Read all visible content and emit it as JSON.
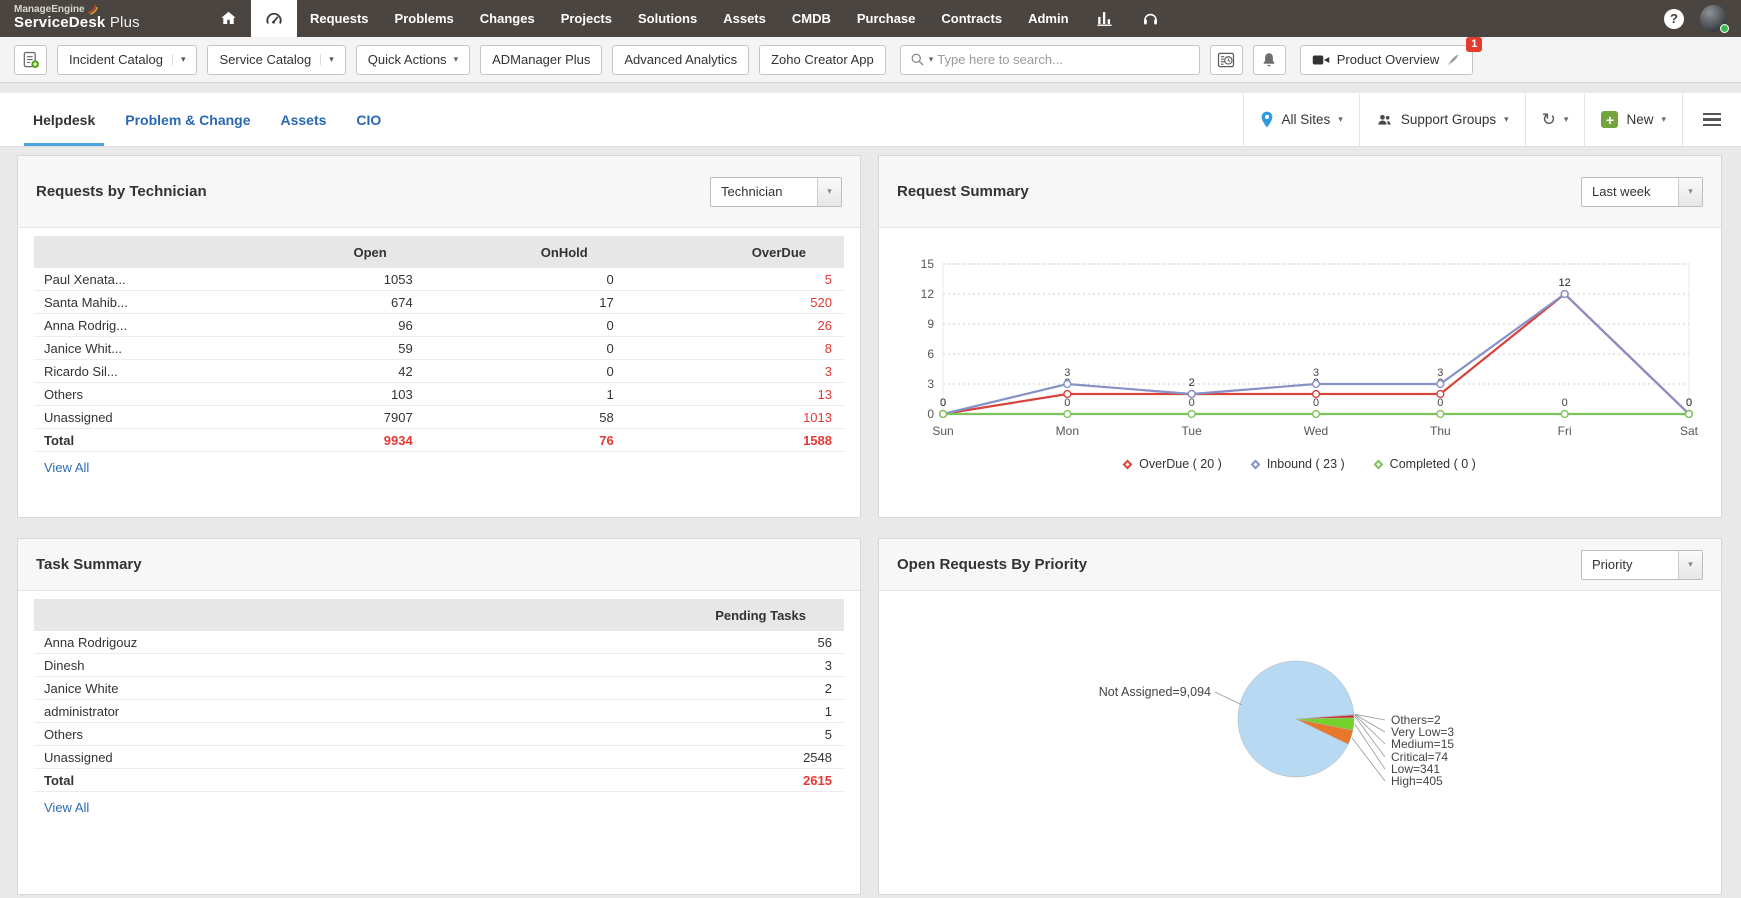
{
  "nav": {
    "brand_line1": "ManageEngine",
    "brand_line2_bold": "ServiceDesk",
    "brand_line2_light": "Plus",
    "items": [
      "Requests",
      "Problems",
      "Changes",
      "Projects",
      "Solutions",
      "Assets",
      "CMDB",
      "Purchase",
      "Contracts",
      "Admin"
    ]
  },
  "toolbar": {
    "buttons": {
      "incident_catalog": "Incident Catalog",
      "service_catalog": "Service Catalog",
      "quick_actions": "Quick Actions",
      "admanager_plus": "ADManager Plus",
      "advanced_analytics": "Advanced Analytics",
      "zoho_creator_app": "Zoho Creator App",
      "product_overview": "Product Overview"
    },
    "search_placeholder": "Type here to search...",
    "badge_count": "1"
  },
  "tabbar": {
    "tabs": [
      "Helpdesk",
      "Problem & Change",
      "Assets",
      "CIO"
    ],
    "active_tab": "Helpdesk",
    "all_sites": "All Sites",
    "support_groups": "Support Groups",
    "new_label": "New"
  },
  "requests_by_technician": {
    "title": "Requests by Technician",
    "filter_value": "Technician",
    "columns": [
      "",
      "Open",
      "OnHold",
      "OverDue"
    ],
    "rows": [
      [
        "Paul Xenata...",
        "1053",
        "0",
        "5"
      ],
      [
        "Santa Mahib...",
        "674",
        "17",
        "520"
      ],
      [
        "Anna Rodrig...",
        "96",
        "0",
        "26"
      ],
      [
        "Janice Whit...",
        "59",
        "0",
        "8"
      ],
      [
        "Ricardo Sil...",
        "42",
        "0",
        "3"
      ],
      [
        "Others",
        "103",
        "1",
        "13"
      ],
      [
        "Unassigned",
        "7907",
        "58",
        "1013"
      ]
    ],
    "total_row": [
      "Total",
      "9934",
      "76",
      "1588"
    ],
    "view_all": "View All"
  },
  "request_summary": {
    "title": "Request Summary",
    "filter_value": "Last week"
  },
  "task_summary": {
    "title": "Task Summary",
    "columns": [
      "",
      "Pending Tasks"
    ],
    "rows": [
      [
        "Anna Rodrigouz",
        "56"
      ],
      [
        "Dinesh",
        "3"
      ],
      [
        "Janice White",
        "2"
      ],
      [
        "administrator",
        "1"
      ],
      [
        "Others",
        "5"
      ],
      [
        "Unassigned",
        "2548"
      ]
    ],
    "total_row": [
      "Total",
      "2615"
    ],
    "view_all": "View All"
  },
  "open_requests_by_priority": {
    "title": "Open Requests By Priority",
    "filter_value": "Priority"
  },
  "chart_data": [
    {
      "type": "line",
      "title": "Request Summary",
      "x": [
        "Sun",
        "Mon",
        "Tue",
        "Wed",
        "Thu",
        "Fri",
        "Sat"
      ],
      "series": [
        {
          "name": "OverDue ( 20 )",
          "color": "#d8433b",
          "values": [
            0,
            2,
            2,
            2,
            2,
            12,
            0
          ]
        },
        {
          "name": "Inbound ( 23 )",
          "color": "#8691c8",
          "values": [
            0,
            3,
            2,
            3,
            3,
            12,
            0
          ]
        },
        {
          "name": "Completed ( 0 )",
          "color": "#7dc35c",
          "values": [
            0,
            0,
            0,
            0,
            0,
            0,
            0
          ]
        }
      ],
      "ylim": [
        0,
        15
      ],
      "yticks": [
        0,
        3,
        6,
        9,
        12,
        15
      ],
      "grid": "horizontal-dotted",
      "legend_position": "bottom"
    },
    {
      "type": "pie",
      "title": "Open Requests By Priority",
      "slices": [
        {
          "label": "Others=2",
          "value": 2,
          "color": "#b05fb0"
        },
        {
          "label": "Very Low=3",
          "value": 3,
          "color": "#df64c3"
        },
        {
          "label": "Medium=15",
          "value": 15,
          "color": "#8e3bad"
        },
        {
          "label": "Critical=74",
          "value": 74,
          "color": "#cc2b2b"
        },
        {
          "label": "Low=341",
          "value": 341,
          "color": "#74d32b"
        },
        {
          "label": "High=405",
          "value": 405,
          "color": "#e7772b"
        },
        {
          "label": "Not Assigned=9,094",
          "value": 9094,
          "color": "#b7d9f1"
        }
      ]
    }
  ]
}
